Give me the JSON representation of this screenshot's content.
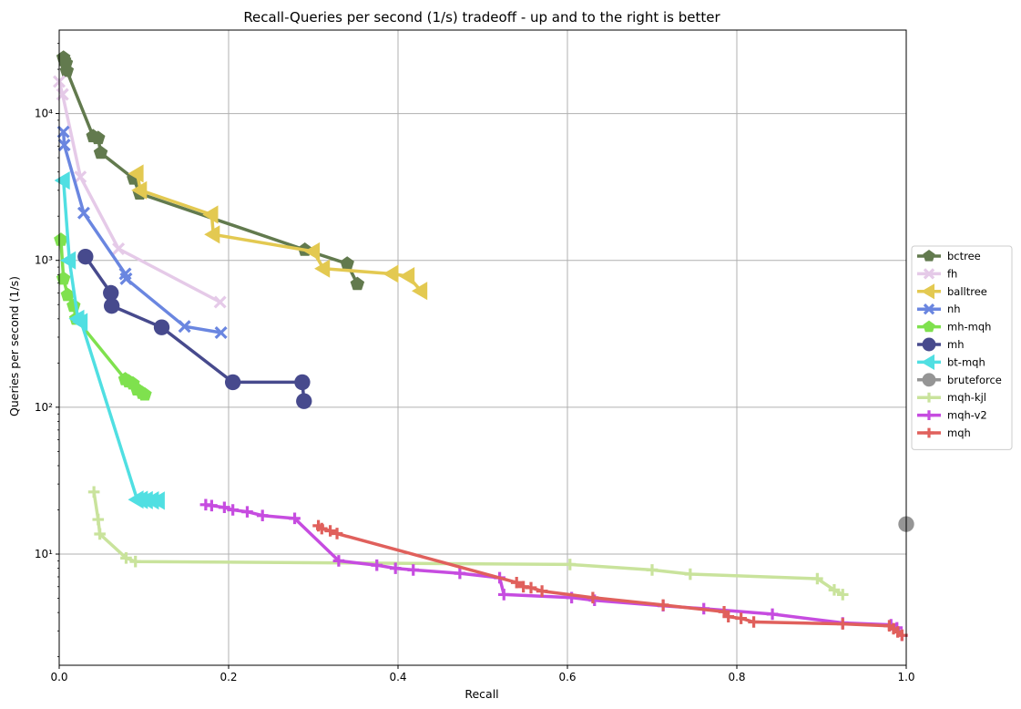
{
  "chart_data": {
    "type": "line",
    "title": "Recall-Queries per second (1/s) tradeoff - up and to the right is better",
    "xlabel": "Recall",
    "ylabel": "Queries per second (1/s)",
    "xlim": [
      0,
      1
    ],
    "ylim": [
      1.75,
      37000
    ],
    "yscale": "log",
    "grid": true,
    "legend_position": "center-right outside",
    "x_ticks": [
      0,
      0.2,
      0.4,
      0.6,
      0.8,
      1.0
    ],
    "x_tick_labels": [
      "0.0",
      "0.2",
      "0.4",
      "0.6",
      "0.8",
      "1.0"
    ],
    "y_ticks": [
      10,
      100,
      1000,
      10000
    ],
    "y_tick_labels": [
      "10¹",
      "10²",
      "10³",
      "10⁴"
    ],
    "series": [
      {
        "name": "bctree",
        "color": "#627a4e",
        "marker": "pentagon",
        "x": [
          0.005,
          0.006,
          0.008,
          0.009,
          0.04,
          0.046,
          0.049,
          0.088,
          0.095,
          0.29,
          0.34,
          0.352
        ],
        "y": [
          24000,
          23000,
          22000,
          19500,
          7000,
          6800,
          5400,
          3600,
          2850,
          1180,
          950,
          690
        ]
      },
      {
        "name": "fh",
        "color": "#e5cae8",
        "marker": "x",
        "x": [
          0.0,
          0.004,
          0.025,
          0.07,
          0.19
        ],
        "y": [
          16500,
          13500,
          3700,
          1200,
          520
        ]
      },
      {
        "name": "balltree",
        "color": "#e3c951",
        "marker": "triangle-left",
        "x": [
          0.092,
          0.096,
          0.18,
          0.182,
          0.3,
          0.312,
          0.393,
          0.412,
          0.427
        ],
        "y": [
          3900,
          3000,
          2050,
          1500,
          1150,
          880,
          810,
          780,
          620
        ]
      },
      {
        "name": "nh",
        "color": "#6a86e0",
        "marker": "x",
        "x": [
          0.005,
          0.006,
          0.029,
          0.078,
          0.079,
          0.148,
          0.191
        ],
        "y": [
          7500,
          6100,
          2100,
          810,
          750,
          355,
          322
        ]
      },
      {
        "name": "mh-mqh",
        "color": "#7fe14e",
        "marker": "pentagon",
        "x": [
          0.002,
          0.005,
          0.01,
          0.017,
          0.02,
          0.078,
          0.082,
          0.087,
          0.092,
          0.098,
          0.101
        ],
        "y": [
          1380,
          750,
          580,
          490,
          400,
          155,
          150,
          145,
          132,
          125,
          122
        ]
      },
      {
        "name": "mh",
        "color": "#474a8d",
        "marker": "circle",
        "x": [
          0.031,
          0.061,
          0.062,
          0.121,
          0.205,
          0.287,
          0.289
        ],
        "y": [
          1060,
          600,
          490,
          350,
          148,
          148,
          110
        ]
      },
      {
        "name": "bt-mqh",
        "color": "#50dfe2",
        "marker": "triangle-left",
        "x": [
          0.005,
          0.012,
          0.022,
          0.026,
          0.092,
          0.097,
          0.103,
          0.11,
          0.117
        ],
        "y": [
          3500,
          1000,
          400,
          380,
          23.5,
          23.4,
          23.3,
          23.2,
          23.1
        ]
      },
      {
        "name": "bruteforce",
        "color": "#959595",
        "marker": "circle",
        "x": [
          1.0
        ],
        "y": [
          16
        ]
      },
      {
        "name": "mqh-kjl",
        "color": "#c9e39c",
        "marker": "plus",
        "x": [
          0.041,
          0.046,
          0.048,
          0.079,
          0.09,
          0.603,
          0.7,
          0.745,
          0.895,
          0.915,
          0.925
        ],
        "y": [
          26.5,
          17.2,
          13.7,
          9.4,
          8.9,
          8.5,
          7.8,
          7.3,
          6.8,
          5.7,
          5.3
        ]
      },
      {
        "name": "mqh-v2",
        "color": "#c64ce0",
        "marker": "plus",
        "x": [
          0.173,
          0.18,
          0.195,
          0.205,
          0.222,
          0.24,
          0.278,
          0.33,
          0.375,
          0.397,
          0.418,
          0.473,
          0.52,
          0.525,
          0.605,
          0.632,
          0.713,
          0.761,
          0.842,
          0.925,
          0.982,
          0.989,
          0.995
        ],
        "y": [
          21.7,
          21.4,
          20.8,
          20.0,
          19.4,
          18.3,
          17.5,
          9.0,
          8.4,
          8.0,
          7.8,
          7.4,
          6.9,
          5.3,
          5.05,
          4.85,
          4.45,
          4.25,
          3.9,
          3.4,
          3.3,
          3.15,
          2.8
        ]
      },
      {
        "name": "mqh",
        "color": "#e0605c",
        "marker": "plus",
        "x": [
          0.306,
          0.31,
          0.32,
          0.328,
          0.54,
          0.548,
          0.557,
          0.57,
          0.63,
          0.713,
          0.785,
          0.79,
          0.805,
          0.82,
          0.925,
          0.98,
          0.985,
          0.99,
          0.995
        ],
        "y": [
          15.6,
          14.9,
          14.4,
          13.8,
          6.4,
          6.0,
          5.9,
          5.6,
          5.05,
          4.5,
          4.05,
          3.75,
          3.65,
          3.45,
          3.35,
          3.25,
          3.1,
          2.95,
          2.8
        ]
      }
    ]
  }
}
